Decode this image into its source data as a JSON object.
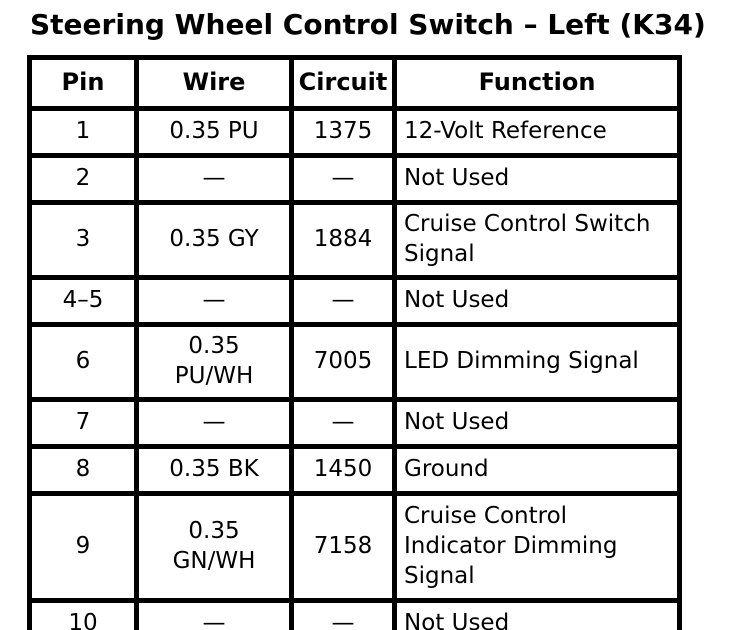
{
  "title": "Steering Wheel Control Switch – Left (K34)",
  "table": {
    "headers": [
      "Pin",
      "Wire",
      "Circuit",
      "Function"
    ],
    "rows": [
      {
        "pin": "1",
        "wire": "0.35 PU",
        "circuit": "1375",
        "function": "12-Volt Reference"
      },
      {
        "pin": "2",
        "wire": "—",
        "circuit": "—",
        "function": "Not Used"
      },
      {
        "pin": "3",
        "wire": "0.35 GY",
        "circuit": "1884",
        "function": "Cruise Control Switch\nSignal"
      },
      {
        "pin": "4–5",
        "wire": "—",
        "circuit": "—",
        "function": "Not Used"
      },
      {
        "pin": "6",
        "wire": "0.35\nPU/WH",
        "circuit": "7005",
        "function": "LED Dimming Signal"
      },
      {
        "pin": "7",
        "wire": "—",
        "circuit": "—",
        "function": "Not Used"
      },
      {
        "pin": "8",
        "wire": "0.35 BK",
        "circuit": "1450",
        "function": "Ground"
      },
      {
        "pin": "9",
        "wire": "0.35\nGN/WH",
        "circuit": "7158",
        "function": "Cruise Control\nIndicator Dimming\nSignal"
      },
      {
        "pin": "10",
        "wire": "—",
        "circuit": "—",
        "function": "Not Used"
      }
    ]
  }
}
